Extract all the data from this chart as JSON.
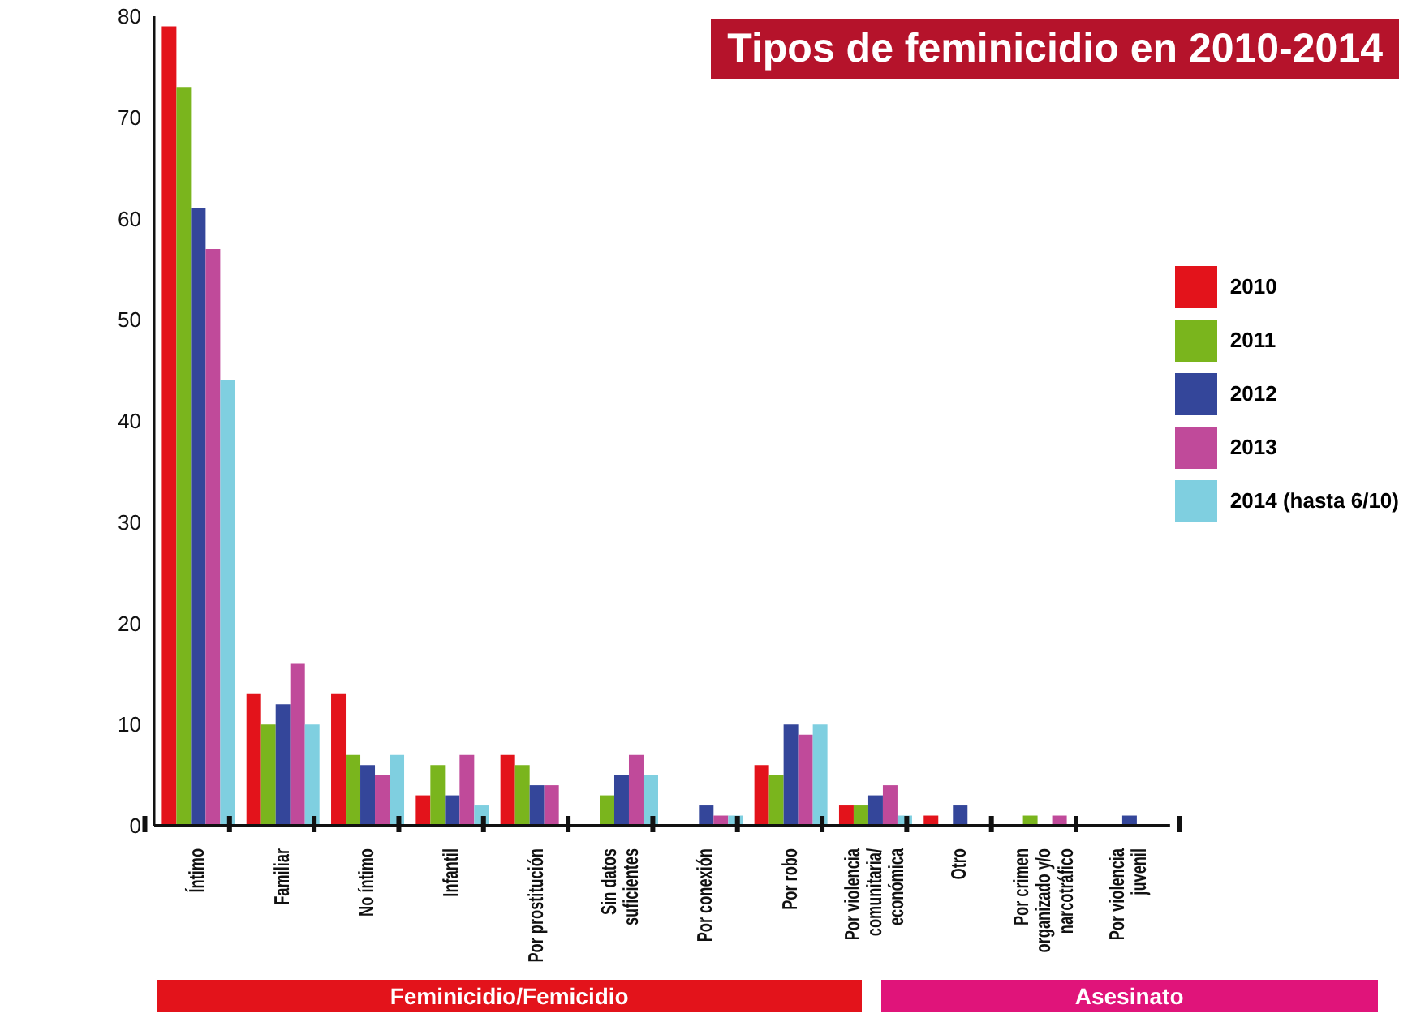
{
  "chart_data": {
    "type": "bar",
    "title": "Tipos de feminicidio en 2010-2014",
    "categories": [
      "Íntimo",
      "Familiar",
      "No íntimo",
      "Infantil",
      "Por prostitución",
      "Sin datos\nsuficientes",
      "Por conexión",
      "Por robo",
      "Por violencia\ncomunitaria/\neconómica",
      "Otro",
      "Por crimen\norganizado y/o\nnarcotráfico",
      "Por violencia\njuvenil"
    ],
    "series": [
      {
        "name": "2010",
        "color": "#e3131b",
        "values": [
          79,
          13,
          13,
          3,
          7,
          null,
          null,
          6,
          2,
          1,
          null,
          null
        ]
      },
      {
        "name": "2011",
        "color": "#7ab51d",
        "values": [
          73,
          10,
          7,
          6,
          6,
          3,
          null,
          5,
          2,
          null,
          1,
          null
        ]
      },
      {
        "name": "2012",
        "color": "#34469a",
        "values": [
          61,
          12,
          6,
          3,
          4,
          5,
          2,
          10,
          3,
          2,
          null,
          1
        ]
      },
      {
        "name": "2013",
        "color": "#c04a9a",
        "values": [
          57,
          16,
          5,
          7,
          4,
          7,
          1,
          9,
          4,
          null,
          1,
          null
        ]
      },
      {
        "name": "2014 (hasta 6/10)",
        "color": "#7fcfe0",
        "values": [
          44,
          10,
          7,
          2,
          null,
          5,
          1,
          10,
          1,
          null,
          null,
          null
        ]
      }
    ],
    "ylim": [
      0,
      80
    ],
    "yticks": [
      0,
      10,
      20,
      30,
      40,
      50,
      60,
      70,
      80
    ],
    "grid": false,
    "legend": "right",
    "annotations": [
      "Feminicidio/Femicidio",
      "Asesinato"
    ]
  }
}
